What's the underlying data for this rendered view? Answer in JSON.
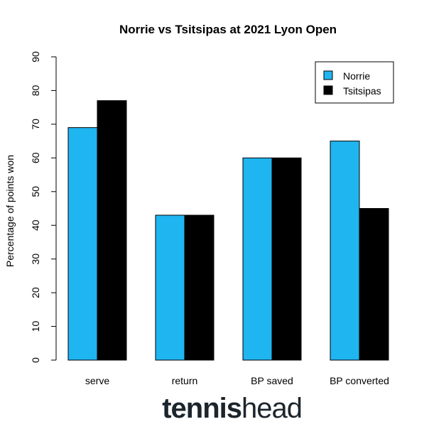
{
  "chart_data": {
    "type": "bar",
    "title": "Norrie vs Tsitsipas at 2021 Lyon Open",
    "xlabel": "",
    "ylabel": "Percentage of points won",
    "categories": [
      "serve",
      "return",
      "BP saved",
      "BP converted"
    ],
    "series": [
      {
        "name": "Norrie",
        "color": "#1fb5f0",
        "values": [
          69,
          43,
          60,
          65
        ]
      },
      {
        "name": "Tsitsipas",
        "color": "#000000",
        "values": [
          77,
          43,
          60,
          45
        ]
      }
    ],
    "ylim": [
      0,
      90
    ],
    "yticks": [
      0,
      10,
      20,
      30,
      40,
      50,
      60,
      70,
      80,
      90
    ],
    "grid": false,
    "legend_position": "top-right"
  },
  "logo": {
    "bold_part": "tennis",
    "light_part": "head"
  }
}
